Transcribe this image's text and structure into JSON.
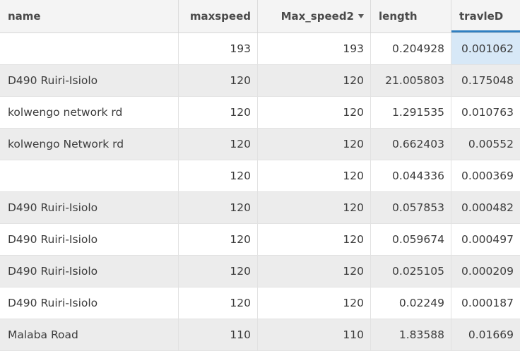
{
  "table": {
    "columns": [
      "name",
      "maxspeed",
      "Max_speed2",
      "length",
      "travleD"
    ],
    "sorted_column_icon": "sort-descending-icon",
    "rows": [
      [
        "",
        "193",
        "193",
        "0.204928",
        "0.001062"
      ],
      [
        "D490 Ruiri-Isiolo",
        "120",
        "120",
        "21.005803",
        "0.175048"
      ],
      [
        "kolwengo network rd",
        "120",
        "120",
        "1.291535",
        "0.010763"
      ],
      [
        "kolwengo Network rd",
        "120",
        "120",
        "0.662403",
        "0.00552"
      ],
      [
        "",
        "120",
        "120",
        "0.044336",
        "0.000369"
      ],
      [
        "D490 Ruiri-Isiolo",
        "120",
        "120",
        "0.057853",
        "0.000482"
      ],
      [
        "D490 Ruiri-Isiolo",
        "120",
        "120",
        "0.059674",
        "0.000497"
      ],
      [
        "D490 Ruiri-Isiolo",
        "120",
        "120",
        "0.025105",
        "0.000209"
      ],
      [
        "D490 Ruiri-Isiolo",
        "120",
        "120",
        "0.02249",
        "0.000187"
      ],
      [
        "Malaba Road",
        "110",
        "110",
        "1.83588",
        "0.01669"
      ]
    ]
  },
  "colors": {
    "header_bg": "#f4f4f4",
    "stripe_bg": "#ececec",
    "selected_bg": "#d7e8f7",
    "active_underline": "#2f7fc1"
  }
}
